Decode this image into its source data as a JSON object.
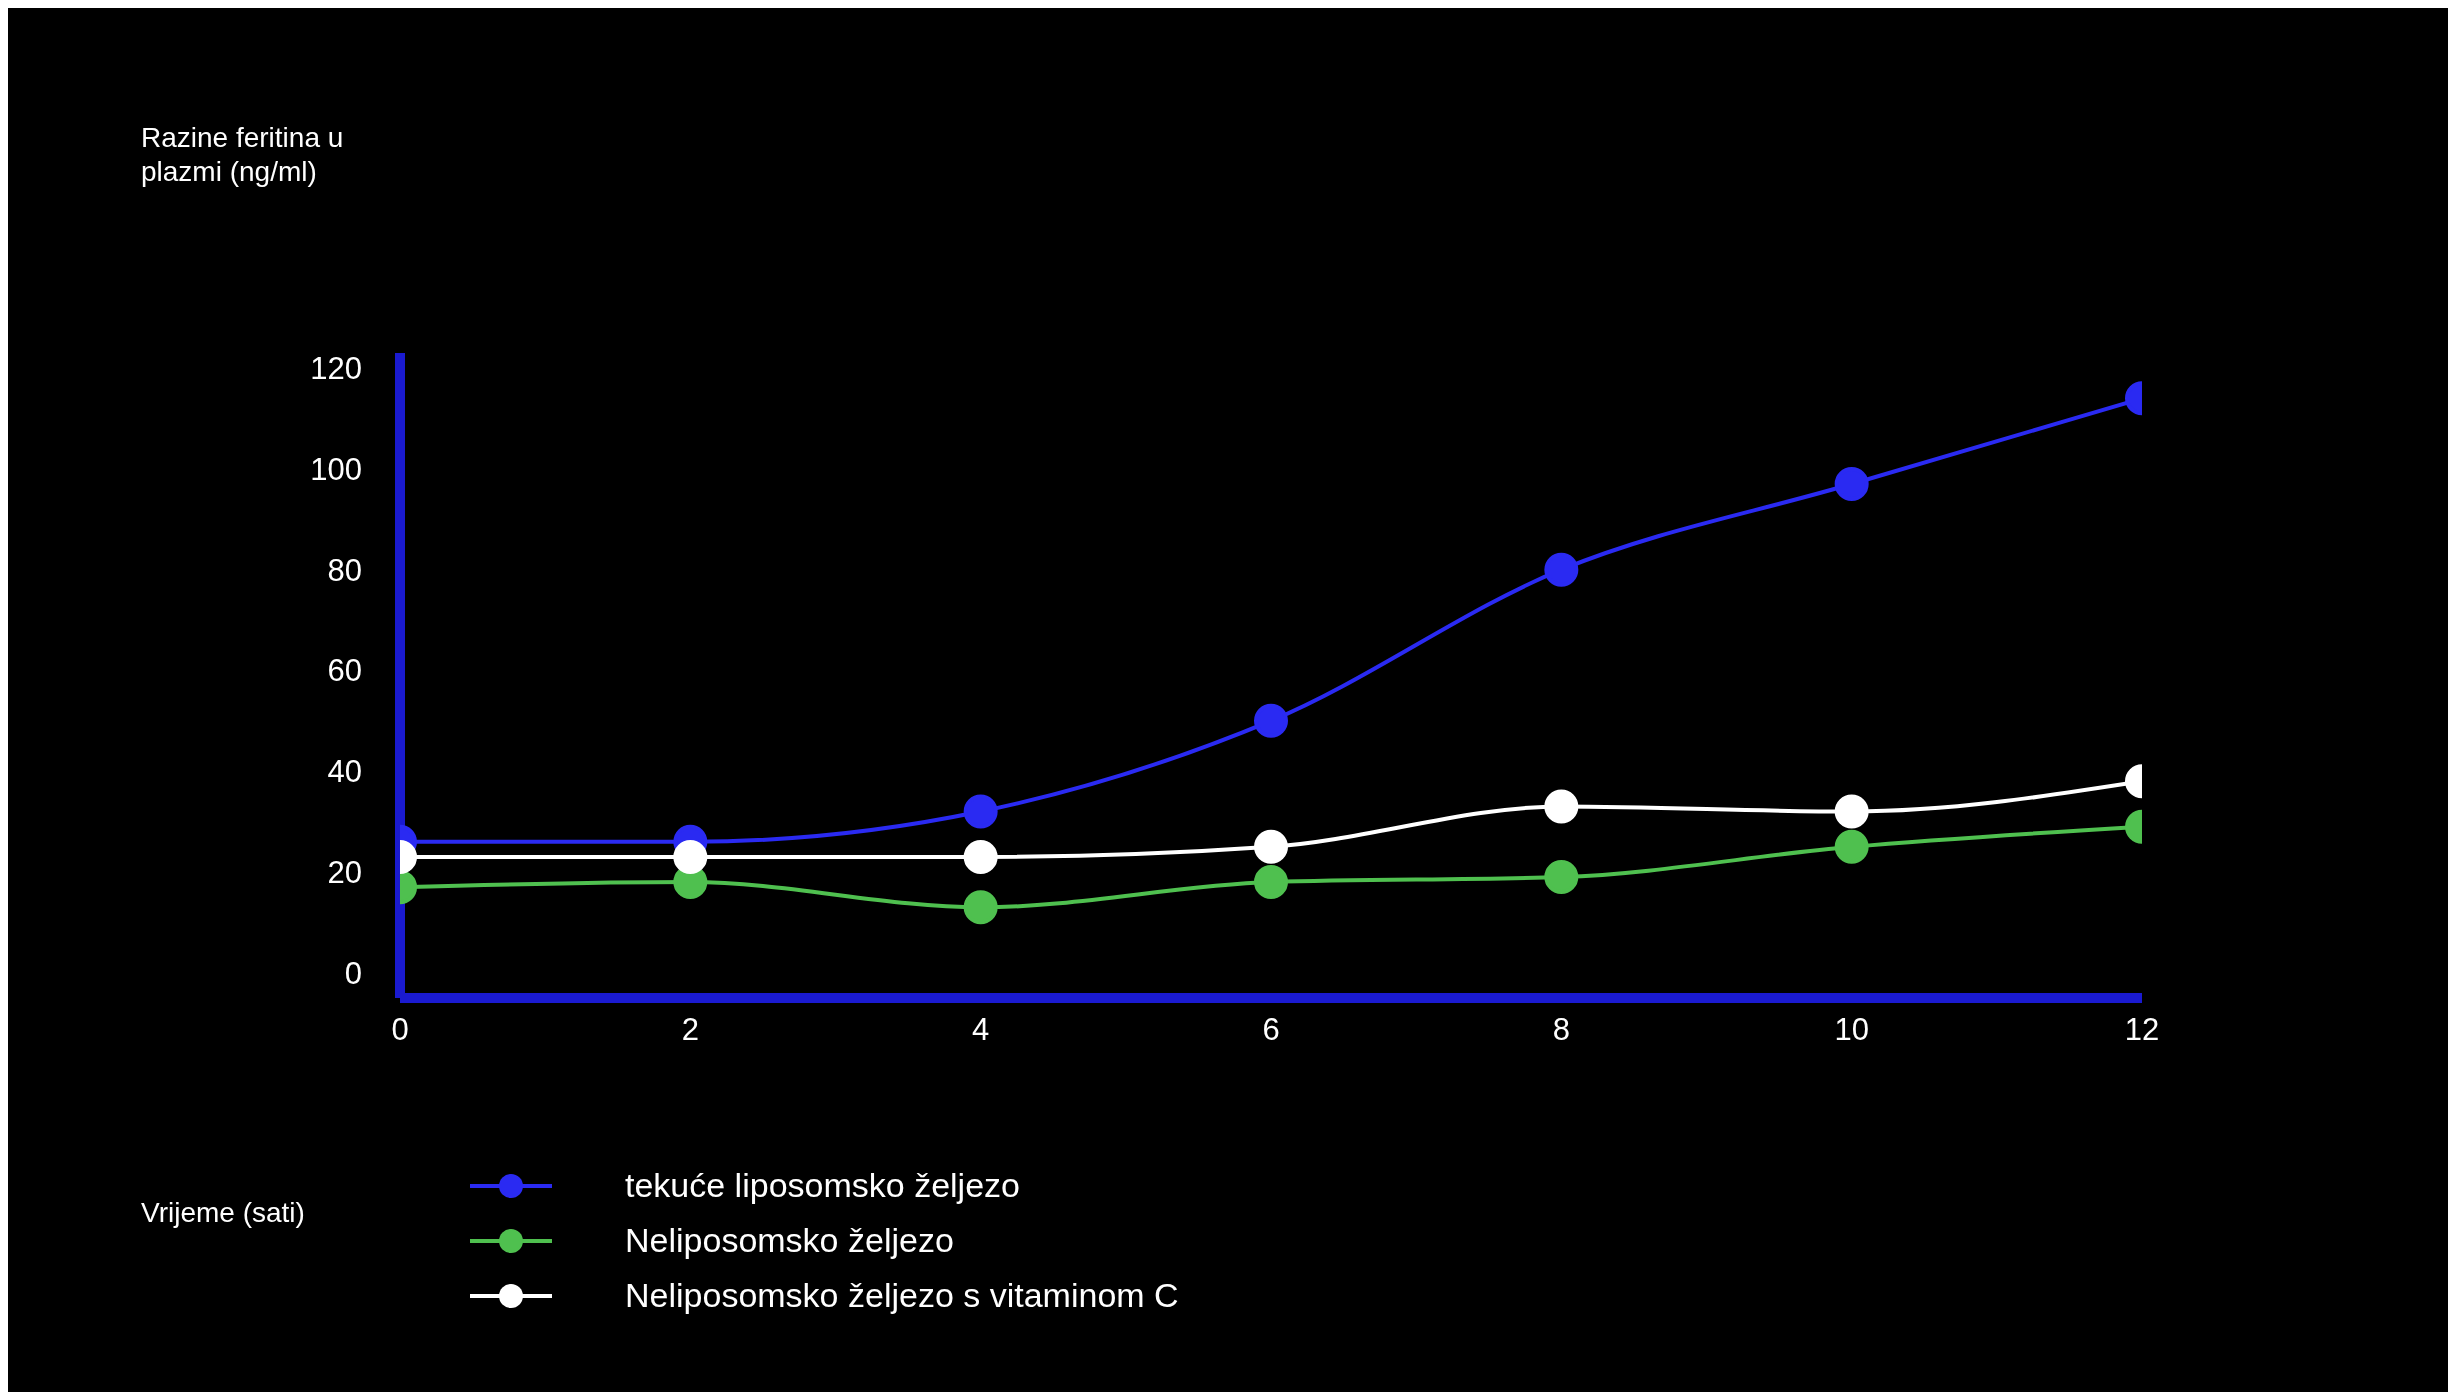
{
  "chart_data": {
    "type": "line",
    "annotations": [
      "Razine feritina u plazmi (ng/ml)",
      "Vrijeme (sati)"
    ],
    "x": [
      0,
      2,
      4,
      6,
      8,
      10,
      12
    ],
    "xlim": [
      0,
      12
    ],
    "xticks": [
      0,
      2,
      4,
      6,
      8,
      10,
      12
    ],
    "ylim": [
      -5,
      123
    ],
    "yticks": [
      0,
      20,
      40,
      60,
      80,
      100,
      120
    ],
    "grid": false,
    "legend": "bottom",
    "marker": "circle",
    "line_style": "solid",
    "series": [
      {
        "name": "tekuće liposomsko željezo",
        "color": "#2a2af2",
        "values": [
          26,
          26,
          32,
          50,
          80,
          97,
          114
        ]
      },
      {
        "name": "Neliposomsko željezo",
        "color": "#4fc04f",
        "values": [
          17,
          18,
          13,
          18,
          19,
          25,
          29
        ]
      },
      {
        "name": "Neliposomsko željezo s vitaminom C",
        "color": "#ffffff",
        "values": [
          23,
          23,
          23,
          25,
          33,
          32,
          38
        ]
      }
    ]
  }
}
